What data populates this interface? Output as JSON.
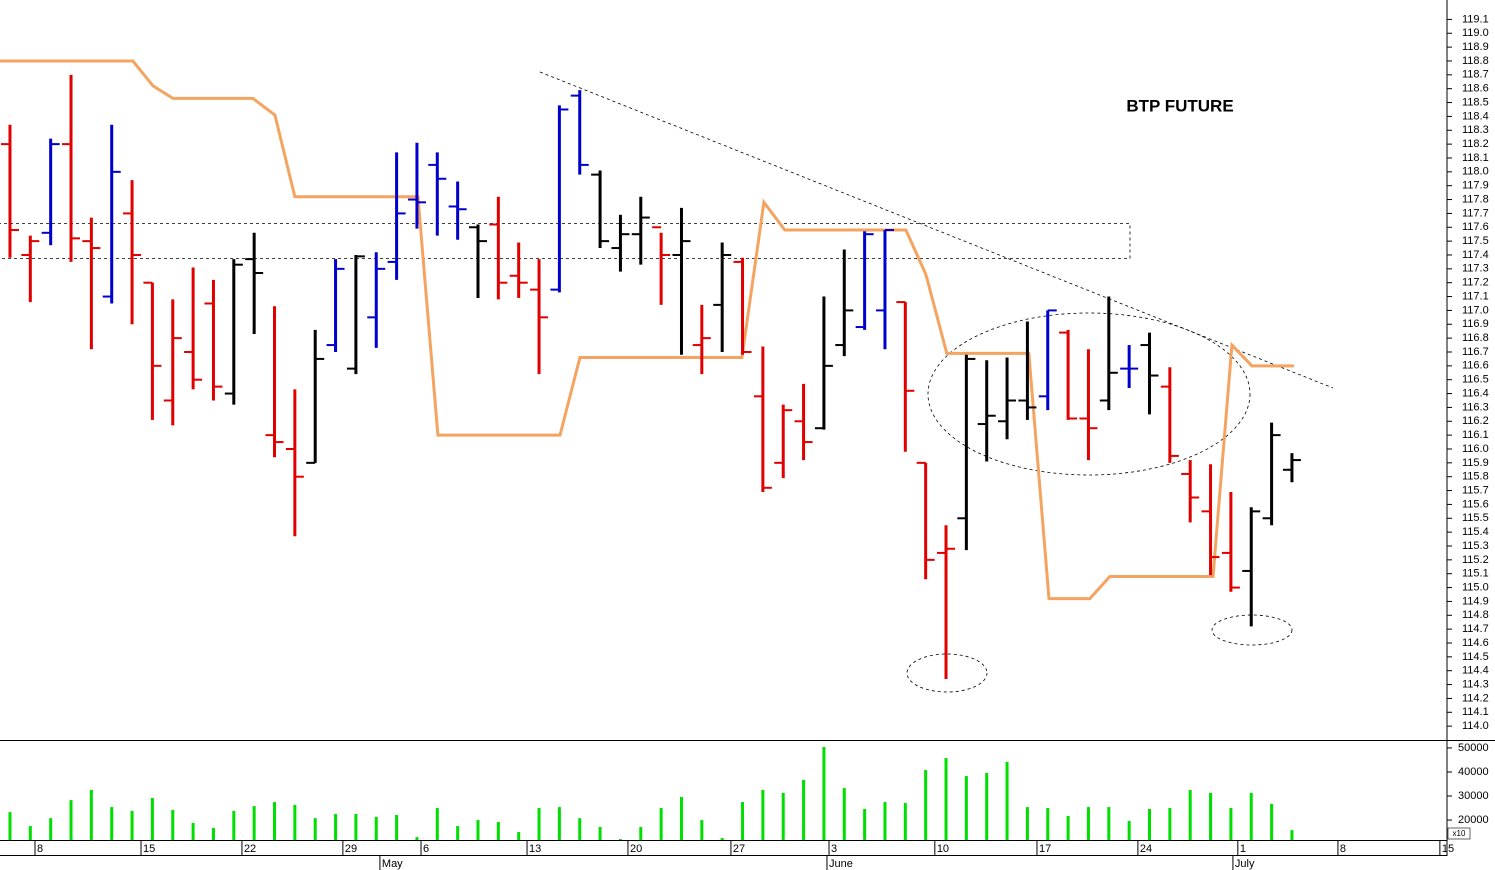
{
  "chart_data": {
    "type": "ohlc",
    "title": "BTP FUTURE",
    "x": [
      0,
      1,
      2,
      3,
      4,
      5,
      6,
      7,
      8,
      9,
      10,
      11,
      12,
      13,
      14,
      15,
      16,
      17,
      18,
      19,
      20,
      21,
      22,
      23,
      24,
      25,
      26,
      27,
      28,
      29,
      30,
      31,
      32,
      33,
      34,
      35,
      36,
      37,
      38,
      39,
      40,
      41,
      42,
      43,
      44,
      45,
      46,
      47,
      48,
      49,
      50,
      51,
      52,
      53,
      54,
      55,
      56,
      57,
      58,
      59,
      60,
      61,
      62,
      63
    ],
    "open": [
      118.2,
      117.4,
      117.56,
      118.2,
      117.5,
      117.1,
      117.7,
      117.2,
      116.35,
      116.7,
      117.05,
      116.4,
      117.37,
      116.1,
      116.0,
      115.9,
      116.75,
      116.58,
      116.95,
      117.35,
      117.8,
      118.05,
      117.75,
      117.6,
      117.62,
      117.25,
      117.15,
      117.15,
      118.55,
      117.98,
      117.45,
      117.55,
      117.6,
      117.4,
      116.75,
      117.04,
      117.35,
      116.38,
      115.9,
      116.2,
      116.15,
      116.75,
      116.88,
      117.0,
      117.06,
      115.9,
      115.25,
      115.5,
      116.18,
      116.2,
      116.35,
      116.38,
      116.84,
      116.22,
      116.35,
      116.58,
      116.75,
      116.45,
      115.82,
      115.55,
      115.25,
      115.12,
      115.5,
      115.85
    ],
    "high": [
      118.34,
      117.54,
      118.24,
      118.7,
      117.67,
      118.34,
      117.94,
      117.2,
      117.08,
      117.31,
      117.22,
      117.37,
      117.56,
      117.03,
      116.43,
      116.86,
      117.37,
      117.4,
      117.42,
      118.14,
      118.21,
      118.14,
      117.93,
      117.62,
      117.82,
      117.49,
      117.37,
      118.48,
      118.59,
      118.01,
      117.69,
      117.82,
      117.56,
      117.74,
      117.04,
      117.49,
      117.38,
      116.74,
      116.32,
      116.47,
      117.1,
      117.44,
      117.57,
      117.58,
      117.06,
      115.9,
      115.45,
      116.68,
      116.64,
      116.66,
      116.92,
      117.0,
      116.86,
      116.72,
      117.1,
      116.75,
      116.84,
      116.59,
      115.92,
      115.89,
      115.69,
      115.58,
      116.19,
      115.97
    ],
    "low": [
      117.38,
      117.06,
      117.47,
      117.35,
      116.72,
      117.05,
      116.9,
      116.21,
      116.17,
      116.43,
      116.35,
      116.32,
      116.83,
      115.94,
      115.37,
      115.9,
      116.7,
      116.54,
      116.73,
      117.22,
      117.59,
      117.54,
      117.51,
      117.09,
      117.08,
      117.09,
      116.54,
      117.13,
      117.98,
      117.45,
      117.28,
      117.33,
      117.04,
      116.68,
      116.54,
      116.7,
      116.68,
      115.69,
      115.79,
      115.92,
      116.14,
      116.67,
      116.86,
      116.72,
      115.98,
      115.06,
      114.34,
      115.27,
      115.91,
      116.07,
      116.21,
      116.28,
      116.21,
      115.92,
      116.28,
      116.44,
      116.25,
      115.9,
      115.47,
      115.09,
      114.97,
      114.72,
      115.45,
      115.76
    ],
    "close": [
      117.58,
      117.5,
      118.2,
      117.52,
      117.45,
      118.0,
      117.4,
      116.6,
      116.8,
      116.5,
      116.45,
      117.33,
      117.27,
      116.05,
      115.8,
      116.65,
      117.3,
      117.39,
      117.3,
      117.7,
      117.78,
      117.95,
      117.73,
      117.5,
      117.2,
      117.2,
      116.95,
      118.45,
      118.05,
      117.5,
      117.55,
      117.67,
      117.4,
      117.5,
      116.8,
      117.4,
      116.7,
      115.72,
      116.28,
      116.05,
      116.6,
      117.0,
      117.55,
      117.58,
      116.42,
      115.2,
      115.28,
      116.65,
      116.24,
      116.35,
      116.3,
      117.0,
      116.22,
      116.15,
      116.55,
      116.58,
      116.53,
      115.95,
      115.65,
      115.22,
      115.0,
      115.55,
      116.1,
      115.92
    ],
    "colors": [
      "#e00000",
      "#e00000",
      "#0000cc",
      "#e00000",
      "#e00000",
      "#0000cc",
      "#e00000",
      "#e00000",
      "#e00000",
      "#e00000",
      "#e00000",
      "#000000",
      "#000000",
      "#e00000",
      "#e00000",
      "#000000",
      "#0000cc",
      "#000000",
      "#0000cc",
      "#0000cc",
      "#0000cc",
      "#0000cc",
      "#0000cc",
      "#000000",
      "#e00000",
      "#e00000",
      "#e00000",
      "#0000cc",
      "#0000cc",
      "#000000",
      "#000000",
      "#000000",
      "#e00000",
      "#000000",
      "#e00000",
      "#000000",
      "#e00000",
      "#e00000",
      "#e00000",
      "#e00000",
      "#000000",
      "#000000",
      "#0000cc",
      "#0000cc",
      "#e00000",
      "#e00000",
      "#e00000",
      "#000000",
      "#000000",
      "#000000",
      "#000000",
      "#0000cc",
      "#e00000",
      "#e00000",
      "#000000",
      "#0000cc",
      "#000000",
      "#e00000",
      "#e00000",
      "#e00000",
      "#e00000",
      "#000000",
      "#000000",
      "#000000"
    ],
    "xlim": [
      -0.49,
      70.62
    ],
    "ylim": [
      113.9,
      119.24
    ],
    "yticks": [
      {
        "value": 114.0,
        "label": "114.0"
      },
      {
        "value": 114.1,
        "label": "114.1"
      },
      {
        "value": 114.2,
        "label": "114.2"
      },
      {
        "value": 114.3,
        "label": "114.3"
      },
      {
        "value": 114.4,
        "label": "114.4"
      },
      {
        "value": 114.5,
        "label": "114.5"
      },
      {
        "value": 114.6,
        "label": "114.6"
      },
      {
        "value": 114.7,
        "label": "114.7"
      },
      {
        "value": 114.8,
        "label": "114.8"
      },
      {
        "value": 114.9,
        "label": "114.9"
      },
      {
        "value": 115.0,
        "label": "115.0"
      },
      {
        "value": 115.1,
        "label": "115.1"
      },
      {
        "value": 115.2,
        "label": "115.2"
      },
      {
        "value": 115.3,
        "label": "115.3"
      },
      {
        "value": 115.4,
        "label": "115.4"
      },
      {
        "value": 115.5,
        "label": "115.5"
      },
      {
        "value": 115.6,
        "label": "115.6"
      },
      {
        "value": 115.7,
        "label": "115.7"
      },
      {
        "value": 115.8,
        "label": "115.8"
      },
      {
        "value": 115.9,
        "label": "115.9"
      },
      {
        "value": 116.0,
        "label": "116.0"
      },
      {
        "value": 116.1,
        "label": "116.1"
      },
      {
        "value": 116.2,
        "label": "116.2"
      },
      {
        "value": 116.3,
        "label": "116.3"
      },
      {
        "value": 116.4,
        "label": "116.4"
      },
      {
        "value": 116.5,
        "label": "116.5"
      },
      {
        "value": 116.6,
        "label": "116.6"
      },
      {
        "value": 116.7,
        "label": "116.7"
      },
      {
        "value": 116.8,
        "label": "116.8"
      },
      {
        "value": 116.9,
        "label": "116.9"
      },
      {
        "value": 117.0,
        "label": "117.0"
      },
      {
        "value": 117.1,
        "label": "117.1"
      },
      {
        "value": 117.2,
        "label": "117.2"
      },
      {
        "value": 117.3,
        "label": "117.3"
      },
      {
        "value": 117.4,
        "label": "117.4"
      },
      {
        "value": 117.5,
        "label": "117.5"
      },
      {
        "value": 117.6,
        "label": "117.6"
      },
      {
        "value": 117.7,
        "label": "117.7"
      },
      {
        "value": 117.8,
        "label": "117.8"
      },
      {
        "value": 117.9,
        "label": "117.9"
      },
      {
        "value": 118.0,
        "label": "118.0"
      },
      {
        "value": 118.1,
        "label": "118.1"
      },
      {
        "value": 118.2,
        "label": "118.2"
      },
      {
        "value": 118.3,
        "label": "118.3"
      },
      {
        "value": 118.4,
        "label": "118.4"
      },
      {
        "value": 118.5,
        "label": "118.5"
      },
      {
        "value": 118.6,
        "label": "118.6"
      },
      {
        "value": 118.7,
        "label": "118.7"
      },
      {
        "value": 118.8,
        "label": "118.8"
      },
      {
        "value": 118.9,
        "label": "118.9"
      },
      {
        "value": 119.0,
        "label": "119.0"
      },
      {
        "value": 119.1,
        "label": "119.1"
      }
    ],
    "xticks": [
      {
        "value": 1.23,
        "label": "8"
      },
      {
        "value": 6.44,
        "label": "15"
      },
      {
        "value": 11.4,
        "label": "22"
      },
      {
        "value": 16.36,
        "label": "29"
      },
      {
        "value": 20.2,
        "label": "6"
      },
      {
        "value": 25.41,
        "label": "13"
      },
      {
        "value": 30.37,
        "label": "20"
      },
      {
        "value": 35.43,
        "label": "27"
      },
      {
        "value": 40.25,
        "label": "3"
      },
      {
        "value": 45.45,
        "label": "10"
      },
      {
        "value": 50.47,
        "label": "17"
      },
      {
        "value": 55.43,
        "label": "24"
      },
      {
        "value": 60.34,
        "label": "1"
      },
      {
        "value": 65.26,
        "label": "8"
      },
      {
        "value": 70.27,
        "label": "15"
      }
    ],
    "month_ticks": [
      {
        "value": 18.18,
        "label": "May"
      },
      {
        "value": 40.15,
        "label": "June"
      },
      {
        "value": 60.1,
        "label": "July"
      }
    ],
    "overlay": {
      "type": "line",
      "color": "#f4a460",
      "x": [
        -0.49,
        6.04,
        7.03,
        8.01,
        11.94,
        13.02,
        14.0,
        20.05,
        21.03,
        27.03,
        28.01,
        35.97,
        37.05,
        38.08,
        44.03,
        45.01,
        46.04,
        50.07,
        51.06,
        53.07,
        54.05,
        59.12,
        60.05,
        61.03,
        63.1
      ],
      "values": [
        118.8,
        118.8,
        118.62,
        118.53,
        118.53,
        118.41,
        117.82,
        117.82,
        116.1,
        116.1,
        116.66,
        116.66,
        117.78,
        117.58,
        117.58,
        117.26,
        116.69,
        116.69,
        114.92,
        114.92,
        115.08,
        115.08,
        116.75,
        116.6,
        116.6
      ]
    },
    "volume": {
      "type": "bar",
      "color": "#00e000",
      "unit_label": "x10",
      "values": [
        23300,
        17500,
        20800,
        28300,
        32500,
        25400,
        23800,
        29200,
        24200,
        18800,
        16700,
        23800,
        25800,
        27500,
        26300,
        20800,
        22500,
        22500,
        21300,
        22100,
        12900,
        25000,
        17500,
        20000,
        19200,
        15000,
        25000,
        25400,
        20800,
        17100,
        12100,
        17100,
        25000,
        29600,
        20000,
        12500,
        27500,
        32500,
        31300,
        36700,
        50400,
        33300,
        24600,
        27500,
        27100,
        40800,
        45800,
        38300,
        39600,
        44200,
        25400,
        25000,
        21700,
        25400,
        25400,
        19600,
        24600,
        25000,
        32500,
        31300,
        25000,
        31300,
        26700,
        15800
      ],
      "ylim": [
        11700,
        53300
      ],
      "yticks": [
        20000,
        30000,
        40000,
        50000
      ]
    }
  }
}
